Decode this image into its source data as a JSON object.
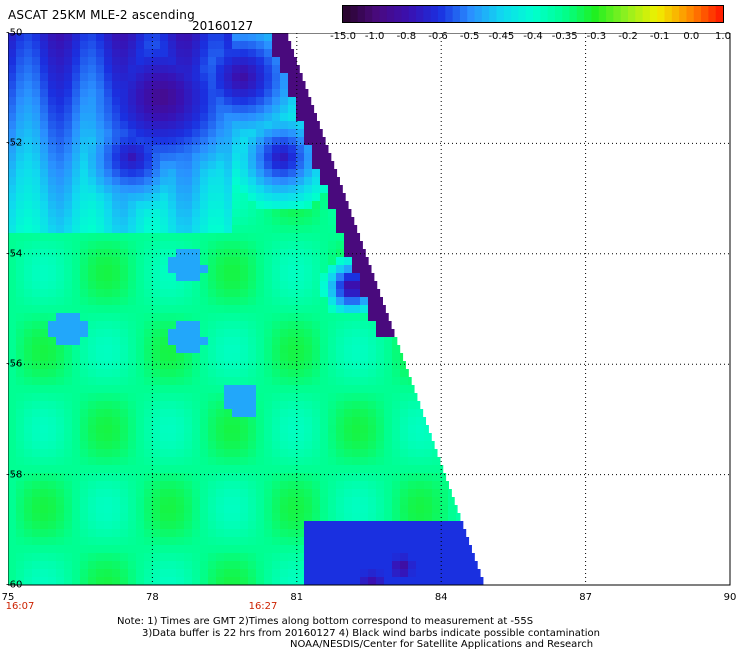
{
  "header": {
    "title": "ASCAT 25KM MLE-2 ascending",
    "date": "20160127"
  },
  "colorbar": {
    "labels": [
      "-15.0",
      "-1.0",
      "-0.8",
      "-0.6",
      "-0.5",
      "-0.45",
      "-0.4",
      "-0.35",
      "-0.3",
      "-0.2",
      "-0.1",
      "0.0",
      "1.0"
    ],
    "colors": [
      "#2a0530",
      "#4a0a80",
      "#3a10b0",
      "#1a30e0",
      "#2a90ff",
      "#10d8f0",
      "#00ffd0",
      "#00ff90",
      "#20f020",
      "#90f020",
      "#f0f000",
      "#ff9000",
      "#ff2000"
    ]
  },
  "axes": {
    "lat_labels": [
      "-50",
      "-52",
      "-54",
      "-56",
      "-58",
      "-60"
    ],
    "lon_labels": [
      "75",
      "78",
      "81",
      "84",
      "87",
      "90"
    ],
    "time_labels": [
      "16:07",
      "16:27"
    ]
  },
  "notes": {
    "line1": "Note: 1) Times are GMT 2)Times along bottom correspond to measurement at -55S",
    "line2": "3)Data buffer is 22 hrs from 20160127 4) Black wind barbs indicate possible contamination",
    "line3": "NOAA/NESDIS/Center for Satellite Applications and Research"
  },
  "map": {
    "lon_range": [
      75,
      90
    ],
    "lat_range": [
      -60,
      -50
    ],
    "grid": "dotted"
  }
}
